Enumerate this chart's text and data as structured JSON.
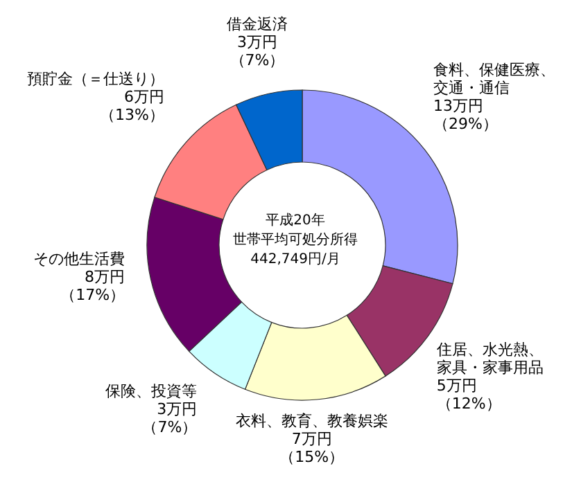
{
  "chart_data": {
    "type": "donut",
    "categories": [
      "食料、保健医療、交通・通信",
      "住居、水光熱、家具・家事用品",
      "衣料、教育、教養娯楽",
      "保険、投資等",
      "その他生活費",
      "預貯金（＝仕送り）",
      "借金返済"
    ],
    "values": [
      29,
      12,
      15,
      7,
      17,
      13,
      7
    ],
    "value_labels": [
      "13万円（29%）",
      "5万円（12%）",
      "7万円（15%）",
      "3万円（7%）",
      "8万円（17%）",
      "6万円（13%）",
      "3万円（7%）"
    ],
    "colors": [
      "#9999ff",
      "#993366",
      "#ffffcc",
      "#ccffff",
      "#660066",
      "#ff8080",
      "#0066cc"
    ],
    "annotations": [
      "平成20年",
      "世帯平均可処分所得",
      "442,749円/月"
    ],
    "legend": false
  }
}
